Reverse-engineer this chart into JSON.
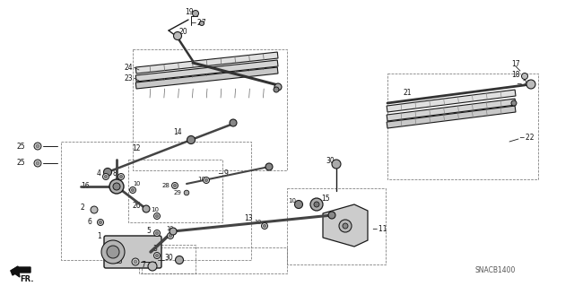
{
  "bg_color": "#ffffff",
  "diagram_code": "SNACB1400",
  "fig_width": 6.4,
  "fig_height": 3.19
}
